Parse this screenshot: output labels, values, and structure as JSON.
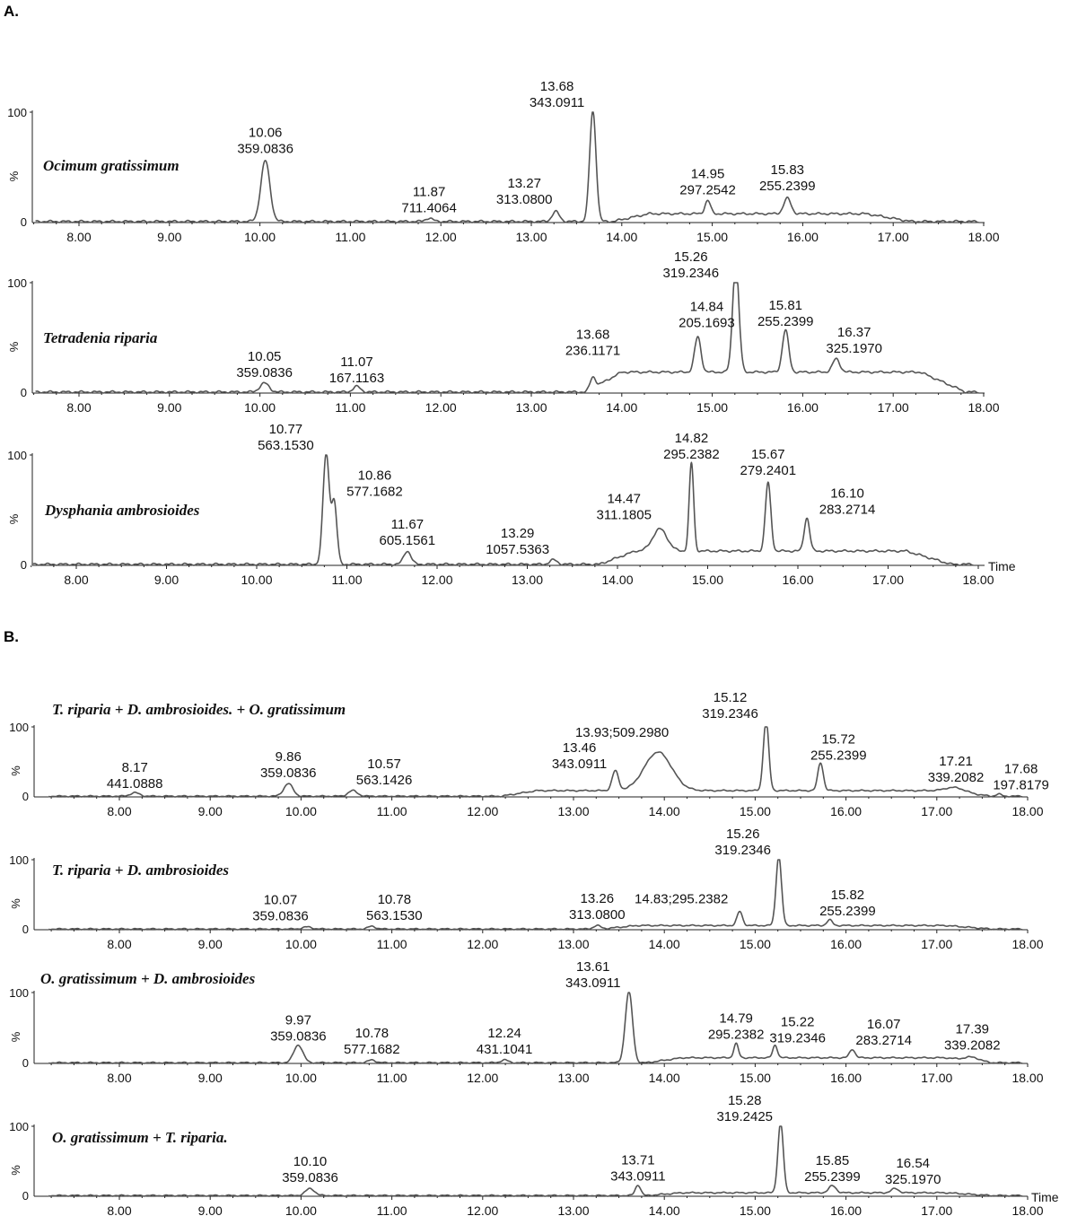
{
  "panels": [
    {
      "label": "A."
    },
    {
      "label": "B."
    }
  ],
  "x_axis_title": "Time",
  "y_unit": "%",
  "colors": {
    "trace": "#555555",
    "axis": "#222222",
    "text": "#111111"
  },
  "chart_data": [
    {
      "type": "line",
      "panel": "A.",
      "title": "Ocimum gratissimum",
      "xlim": [
        7.5,
        18.0
      ],
      "ylim": [
        0,
        100
      ],
      "xticks": [
        "8.00",
        "9.00",
        "10.00",
        "11.00",
        "12.00",
        "13.00",
        "14.00",
        "15.00",
        "16.00",
        "17.00",
        "18.00"
      ],
      "yticks": [
        "100",
        "0"
      ],
      "baseline": 1,
      "peaks": [
        {
          "rt": 10.06,
          "mz": 359.0836,
          "label": "10.06\n359.0836",
          "height": 55,
          "width": 0.05
        },
        {
          "rt": 11.87,
          "mz": 711.4064,
          "label": "11.87\n711.4064",
          "height": 3,
          "width": 0.04
        },
        {
          "rt": 13.27,
          "mz": 313.08,
          "label": "13.27\n313.0800",
          "height": 9,
          "width": 0.04
        },
        {
          "rt": 13.68,
          "mz": 343.0911,
          "label": "13.68\n343.0911",
          "height": 100,
          "width": 0.035
        },
        {
          "rt": 14.95,
          "mz": 297.2542,
          "label": "14.95\n297.2542",
          "height": 12,
          "width": 0.03
        },
        {
          "rt": 15.83,
          "mz": 255.2399,
          "label": "15.83\n255.2399",
          "height": 14,
          "width": 0.04
        }
      ],
      "hump": [
        {
          "start": 13.9,
          "end": 17.2,
          "level": 7
        }
      ]
    },
    {
      "type": "line",
      "panel": "A.",
      "title": "Tetradenia riparia",
      "xlim": [
        7.5,
        18.0
      ],
      "ylim": [
        0,
        100
      ],
      "xticks": [
        "8.00",
        "9.00",
        "10.00",
        "11.00",
        "12.00",
        "13.00",
        "14.00",
        "15.00",
        "16.00",
        "17.00",
        "18.00"
      ],
      "yticks": [
        "100",
        "0"
      ],
      "baseline": 1,
      "peaks": [
        {
          "rt": 10.05,
          "mz": 359.0836,
          "label": "10.05\n359.0836",
          "height": 8,
          "width": 0.05
        },
        {
          "rt": 11.07,
          "mz": 167.1163,
          "label": "11.07\n167.1163",
          "height": 5,
          "width": 0.04
        },
        {
          "rt": 13.68,
          "mz": 236.1171,
          "label": "13.68\n236.1171",
          "height": 10,
          "width": 0.03
        },
        {
          "rt": 14.84,
          "mz": 205.1693,
          "label": "14.84\n205.1693",
          "height": 32,
          "width": 0.035
        },
        {
          "rt": 15.26,
          "mz": 319.2346,
          "label": "15.26\n319.2346",
          "height": 100,
          "width": 0.035
        },
        {
          "rt": 15.81,
          "mz": 255.2399,
          "label": "15.81\n255.2399",
          "height": 38,
          "width": 0.035
        },
        {
          "rt": 16.37,
          "mz": 325.197,
          "label": "16.37\n325.1970",
          "height": 12,
          "width": 0.04
        }
      ],
      "hump": [
        {
          "start": 13.6,
          "end": 17.8,
          "level": 18
        }
      ]
    },
    {
      "type": "line",
      "panel": "A.",
      "title": "Dysphania ambrosioides",
      "xlim": [
        7.5,
        18.0
      ],
      "ylim": [
        0,
        100
      ],
      "xticks": [
        "8.00",
        "9.00",
        "10.00",
        "11.00",
        "12.00",
        "13.00",
        "14.00",
        "15.00",
        "16.00",
        "17.00",
        "18.00"
      ],
      "yticks": [
        "100",
        "0"
      ],
      "baseline": 1,
      "peaks": [
        {
          "rt": 10.77,
          "mz": 563.153,
          "label": "10.77\n563.1530",
          "height": 100,
          "width": 0.035
        },
        {
          "rt": 10.86,
          "mz": 577.1682,
          "label": "10.86\n577.1682",
          "height": 55,
          "width": 0.03
        },
        {
          "rt": 11.67,
          "mz": 605.1561,
          "label": "11.67\n605.1561",
          "height": 12,
          "width": 0.04
        },
        {
          "rt": 13.29,
          "mz": 1057.5363,
          "label": "13.29\n1057.5363",
          "height": 4,
          "width": 0.04
        },
        {
          "rt": 14.47,
          "mz": 311.1805,
          "label": "14.47\n311.1805",
          "height": 20,
          "width": 0.08
        },
        {
          "rt": 14.82,
          "mz": 295.2382,
          "label": "14.82\n295.2382",
          "height": 80,
          "width": 0.025
        },
        {
          "rt": 15.67,
          "mz": 279.2401,
          "label": "15.67\n279.2401",
          "height": 62,
          "width": 0.03
        },
        {
          "rt": 16.1,
          "mz": 283.2714,
          "label": "16.10\n283.2714",
          "height": 30,
          "width": 0.03
        }
      ],
      "hump": [
        {
          "start": 13.8,
          "end": 17.7,
          "level": 12
        }
      ],
      "x_axis_title": "Time"
    },
    {
      "type": "line",
      "panel": "B.",
      "title": "T. riparia + D. ambrosioides. + O. gratissimum",
      "xlim": [
        7.2,
        18.0
      ],
      "ylim": [
        0,
        100
      ],
      "xticks": [
        "8.00",
        "9.00",
        "10.00",
        "11.00",
        "12.00",
        "13.00",
        "14.00",
        "15.00",
        "16.00",
        "17.00",
        "18.00"
      ],
      "yticks": [
        "100",
        "0"
      ],
      "baseline": 1,
      "peaks": [
        {
          "rt": 8.17,
          "mz": 441.0888,
          "label": "8.17\n441.0888",
          "height": 5,
          "width": 0.05
        },
        {
          "rt": 9.86,
          "mz": 359.0836,
          "label": "9.86\n359.0836",
          "height": 18,
          "width": 0.05
        },
        {
          "rt": 10.57,
          "mz": 563.1426,
          "label": "10.57\n563.1426",
          "height": 8,
          "width": 0.05
        },
        {
          "rt": 13.46,
          "mz": 343.0911,
          "label": "13.46\n343.0911",
          "height": 28,
          "width": 0.035
        },
        {
          "rt": 13.93,
          "mz": 509.298,
          "label": "13.93;509.2980",
          "height": 55,
          "width": 0.15
        },
        {
          "rt": 15.12,
          "mz": 319.2346,
          "label": "15.12\n319.2346",
          "height": 100,
          "width": 0.03
        },
        {
          "rt": 15.72,
          "mz": 255.2399,
          "label": "15.72\n255.2399",
          "height": 40,
          "width": 0.03
        },
        {
          "rt": 17.21,
          "mz": 339.2082,
          "label": "17.21\n339.2082",
          "height": 6,
          "width": 0.1
        },
        {
          "rt": 17.68,
          "mz": 197.8179,
          "label": "17.68\n197.8179",
          "height": 3,
          "width": 0.03
        }
      ],
      "hump": [
        {
          "start": 12.2,
          "end": 17.6,
          "level": 8
        }
      ]
    },
    {
      "type": "line",
      "panel": "B.",
      "title": "T. riparia +  D. ambrosioides",
      "xlim": [
        7.2,
        18.0
      ],
      "ylim": [
        0,
        100
      ],
      "xticks": [
        "8.00",
        "9.00",
        "10.00",
        "11.00",
        "12.00",
        "13.00",
        "14.00",
        "15.00",
        "16.00",
        "17.00",
        "18.00"
      ],
      "yticks": [
        "100",
        "0"
      ],
      "baseline": 1,
      "peaks": [
        {
          "rt": 10.07,
          "mz": 359.0836,
          "label": "10.07\n359.0836",
          "height": 3,
          "width": 0.05
        },
        {
          "rt": 10.78,
          "mz": 563.153,
          "label": "10.78\n563.1530",
          "height": 4,
          "width": 0.04
        },
        {
          "rt": 13.26,
          "mz": 313.08,
          "label": "13.26\n313.0800",
          "height": 5,
          "width": 0.04
        },
        {
          "rt": 14.83,
          "mz": 295.2382,
          "label": "14.83;295.2382",
          "height": 20,
          "width": 0.03
        },
        {
          "rt": 15.26,
          "mz": 319.2346,
          "label": "15.26\n319.2346",
          "height": 100,
          "width": 0.03
        },
        {
          "rt": 15.82,
          "mz": 255.2399,
          "label": "15.82\n255.2399",
          "height": 8,
          "width": 0.03
        }
      ],
      "hump": [
        {
          "start": 13.3,
          "end": 17.6,
          "level": 5
        }
      ]
    },
    {
      "type": "line",
      "panel": "B.",
      "title": "O. gratissimum + D. ambrosioides",
      "xlim": [
        7.2,
        18.0
      ],
      "ylim": [
        0,
        100
      ],
      "xticks": [
        "8.00",
        "9.00",
        "10.00",
        "11.00",
        "12.00",
        "13.00",
        "14.00",
        "15.00",
        "16.00",
        "17.00",
        "18.00"
      ],
      "yticks": [
        "100",
        "0"
      ],
      "baseline": 1,
      "peaks": [
        {
          "rt": 9.97,
          "mz": 359.0836,
          "label": "9.97\n359.0836",
          "height": 25,
          "width": 0.05
        },
        {
          "rt": 10.78,
          "mz": 577.1682,
          "label": "10.78\n577.1682",
          "height": 4,
          "width": 0.04
        },
        {
          "rt": 12.24,
          "mz": 431.1041,
          "label": "12.24\n431.1041",
          "height": 4,
          "width": 0.04
        },
        {
          "rt": 13.61,
          "mz": 343.0911,
          "label": "13.61\n343.0911",
          "height": 100,
          "width": 0.04
        },
        {
          "rt": 14.79,
          "mz": 295.2382,
          "label": "14.79\n295.2382",
          "height": 20,
          "width": 0.025
        },
        {
          "rt": 15.22,
          "mz": 319.2346,
          "label": "15.22\n319.2346",
          "height": 18,
          "width": 0.025
        },
        {
          "rt": 16.07,
          "mz": 283.2714,
          "label": "16.07\n283.2714",
          "height": 12,
          "width": 0.03
        },
        {
          "rt": 17.39,
          "mz": 339.2082,
          "label": "17.39\n339.2082",
          "height": 5,
          "width": 0.08
        }
      ],
      "hump": [
        {
          "start": 13.8,
          "end": 17.6,
          "level": 7
        }
      ]
    },
    {
      "type": "line",
      "panel": "B.",
      "title": "O. gratissimum + T. riparia.",
      "xlim": [
        7.2,
        18.0
      ],
      "ylim": [
        0,
        100
      ],
      "xticks": [
        "8.00",
        "9.00",
        "10.00",
        "11.00",
        "12.00",
        "13.00",
        "14.00",
        "15.00",
        "16.00",
        "17.00",
        "18.00"
      ],
      "yticks": [
        "100",
        "0"
      ],
      "baseline": 1,
      "peaks": [
        {
          "rt": 10.1,
          "mz": 359.0836,
          "label": "10.10\n359.0836",
          "height": 10,
          "width": 0.05
        },
        {
          "rt": 13.71,
          "mz": 343.0911,
          "label": "13.71\n343.0911",
          "height": 15,
          "width": 0.03
        },
        {
          "rt": 15.28,
          "mz": 319.2425,
          "label": "15.28\n319.2425",
          "height": 100,
          "width": 0.03
        },
        {
          "rt": 15.85,
          "mz": 255.2399,
          "label": "15.85\n255.2399",
          "height": 10,
          "width": 0.04
        },
        {
          "rt": 16.54,
          "mz": 325.197,
          "label": "16.54\n325.1970",
          "height": 6,
          "width": 0.04
        }
      ],
      "hump": [
        {
          "start": 13.8,
          "end": 17.6,
          "level": 4
        }
      ],
      "x_axis_title": "Time"
    }
  ]
}
